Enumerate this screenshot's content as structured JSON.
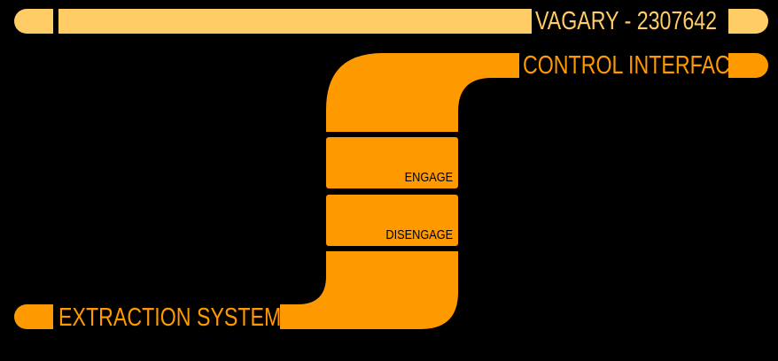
{
  "header": {
    "title": "VAGARY - 2307642"
  },
  "control_panel": {
    "title": "CONTROL INTERFACE",
    "buttons": {
      "engage": "ENGAGE",
      "disengage": "DISENGAGE"
    }
  },
  "footer": {
    "title": "EXTRACTION SYSTEMS"
  },
  "colors": {
    "background": "#000000",
    "header_accent": "#ffcc66",
    "primary_accent": "#ff9900"
  }
}
